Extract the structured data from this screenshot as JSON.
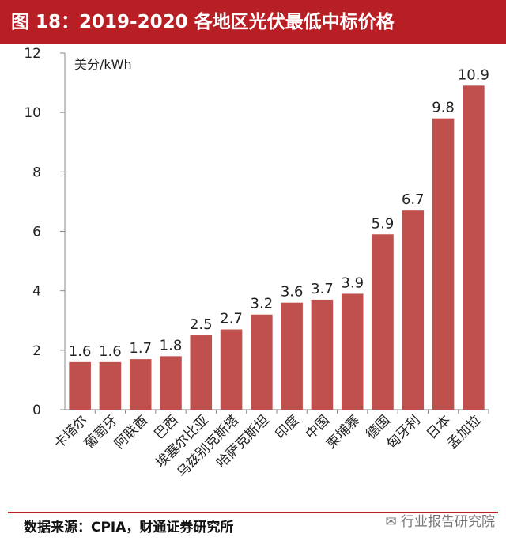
{
  "header": {
    "title": "图 18：2019-2020 各地区光伏最低中标价格"
  },
  "footer": {
    "source": "数据来源：CPIA，财通证券研究所",
    "watermark": "行业报告研究院"
  },
  "colors": {
    "bar": "#c0504d",
    "title_bg": "#b81f25"
  },
  "chart_data": {
    "type": "bar",
    "title": "",
    "ylabel": "美分/kWh",
    "xlabel": "",
    "ylim": [
      0,
      12
    ],
    "yticks": [
      0,
      2,
      4,
      6,
      8,
      10,
      12
    ],
    "grid": false,
    "categories": [
      "卡塔尔",
      "葡萄牙",
      "阿联酋",
      "巴西",
      "埃塞尔比亚",
      "乌兹别克斯塔",
      "哈萨克斯坦",
      "印度",
      "中国",
      "柬埔寨",
      "德国",
      "匈牙利",
      "日本",
      "孟加拉"
    ],
    "values": [
      1.6,
      1.6,
      1.7,
      1.8,
      2.5,
      2.7,
      3.2,
      3.6,
      3.7,
      3.9,
      5.9,
      6.7,
      9.8,
      10.9
    ],
    "value_labels": [
      "1.6",
      "1.6",
      "1.7",
      "1.8",
      "2.5",
      "2.7",
      "3.2",
      "3.6",
      "3.7",
      "3.9",
      "5.9",
      "6.7",
      "9.8",
      "10.9"
    ]
  }
}
